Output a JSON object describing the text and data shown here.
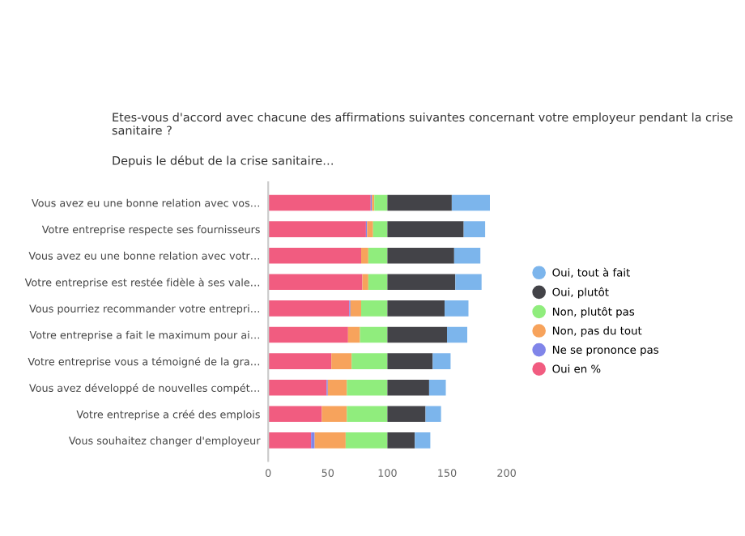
{
  "chart_data": {
    "type": "bar",
    "orientation": "horizontal",
    "stacked": true,
    "title": "Etes-vous d'accord avec chacune des affirmations suivantes concernant votre employeur pendant la crise sanitaire ?",
    "subtitle": "Depuis le début de la crise sanitaire…",
    "categories": [
      "Vous avez eu une bonne relation avec vos…",
      "Votre entreprise respecte ses fournisseurs",
      "Vous avez eu une bonne relation avec votr…",
      "Votre entreprise est restée fidèle à ses vale…",
      "Vous pourriez recommander votre entrepri…",
      "Votre entreprise a fait le maximum pour ai…",
      "Votre entreprise vous a témoigné de la gra…",
      "Vous avez développé de nouvelles compét…",
      "Votre entreprise a créé des emplois",
      "Vous souhaitez changer d'employeur"
    ],
    "series": [
      {
        "name": "Oui en %",
        "color": "#f15c80",
        "values": [
          86,
          82,
          78,
          79,
          68,
          67,
          53,
          49,
          45,
          36
        ]
      },
      {
        "name": "Ne se prononce pas",
        "color": "#8085e9",
        "values": [
          1,
          1,
          0,
          0,
          1,
          0,
          0,
          1,
          0,
          3
        ]
      },
      {
        "name": "Non, pas du tout",
        "color": "#f7a35c",
        "values": [
          2,
          5,
          6,
          5,
          9,
          10,
          17,
          16,
          21,
          26
        ]
      },
      {
        "name": "Non, plutôt pas",
        "color": "#90ed7d",
        "values": [
          11,
          12,
          16,
          16,
          22,
          23,
          30,
          34,
          34,
          35
        ]
      },
      {
        "name": "Oui, plutôt",
        "color": "#434348",
        "values": [
          54,
          64,
          56,
          57,
          48,
          50,
          38,
          35,
          32,
          23
        ]
      },
      {
        "name": "Oui, tout à fait",
        "color": "#7cb5ec",
        "values": [
          32,
          18,
          22,
          22,
          20,
          17,
          15,
          14,
          13,
          13
        ]
      }
    ],
    "xlim": [
      0,
      200
    ],
    "xticks": [
      0,
      50,
      100,
      150,
      200
    ],
    "grid": false,
    "legend": "right"
  }
}
